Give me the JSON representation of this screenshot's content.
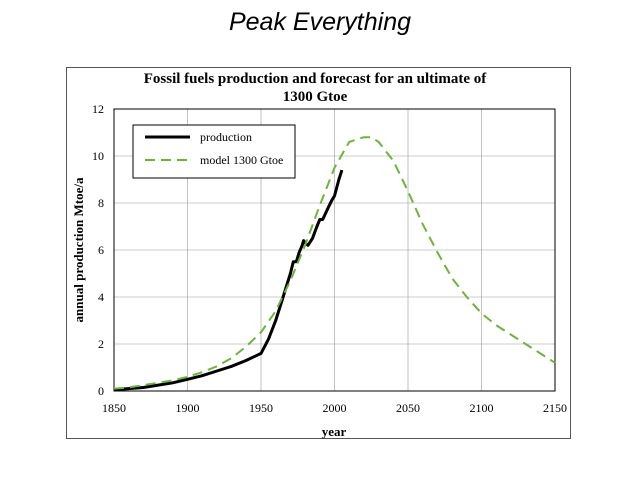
{
  "page": {
    "title": "Peak Everything"
  },
  "chart_data": {
    "type": "line",
    "title": "Fossil fuels production and forecast for an ultimate of",
    "subtitle": "1300 Gtoe",
    "xlabel": "year",
    "ylabel": "annual production Mtoe/a",
    "xlim": [
      1850,
      2150
    ],
    "ylim": [
      0,
      12
    ],
    "xticks": [
      1850,
      1900,
      1950,
      2000,
      2050,
      2100,
      2150
    ],
    "yticks": [
      0,
      2,
      4,
      6,
      8,
      10,
      12
    ],
    "grid": true,
    "legend_position": "top-left",
    "series": [
      {
        "name": "production",
        "style": "solid",
        "color": "#000000",
        "x": [
          1850,
          1860,
          1870,
          1880,
          1890,
          1900,
          1910,
          1920,
          1930,
          1940,
          1950,
          1955,
          1960,
          1965,
          1970,
          1972,
          1974,
          1976,
          1978,
          1979,
          1980,
          1982,
          1985,
          1988,
          1990,
          1992,
          1995,
          1998,
          2000,
          2003,
          2005
        ],
        "y": [
          0.05,
          0.1,
          0.15,
          0.25,
          0.35,
          0.5,
          0.65,
          0.85,
          1.05,
          1.3,
          1.6,
          2.2,
          3.0,
          4.0,
          5.0,
          5.5,
          5.5,
          5.9,
          6.2,
          6.4,
          6.3,
          6.2,
          6.5,
          7.0,
          7.3,
          7.3,
          7.7,
          8.1,
          8.3,
          9.0,
          9.4
        ]
      },
      {
        "name": "model 1300 Gtoe",
        "style": "dashed",
        "color": "#6db33f",
        "x": [
          1850,
          1860,
          1870,
          1880,
          1890,
          1900,
          1910,
          1920,
          1930,
          1940,
          1950,
          1960,
          1970,
          1980,
          1990,
          2000,
          2010,
          2020,
          2025,
          2030,
          2040,
          2050,
          2060,
          2070,
          2080,
          2090,
          2100,
          2110,
          2120,
          2130,
          2140,
          2150
        ],
        "y": [
          0.1,
          0.15,
          0.25,
          0.35,
          0.45,
          0.6,
          0.8,
          1.05,
          1.4,
          1.9,
          2.5,
          3.4,
          4.7,
          6.2,
          7.9,
          9.5,
          10.6,
          10.8,
          10.8,
          10.6,
          9.8,
          8.5,
          7.1,
          5.9,
          4.8,
          4.0,
          3.3,
          2.8,
          2.4,
          2.0,
          1.6,
          1.2
        ]
      }
    ]
  }
}
